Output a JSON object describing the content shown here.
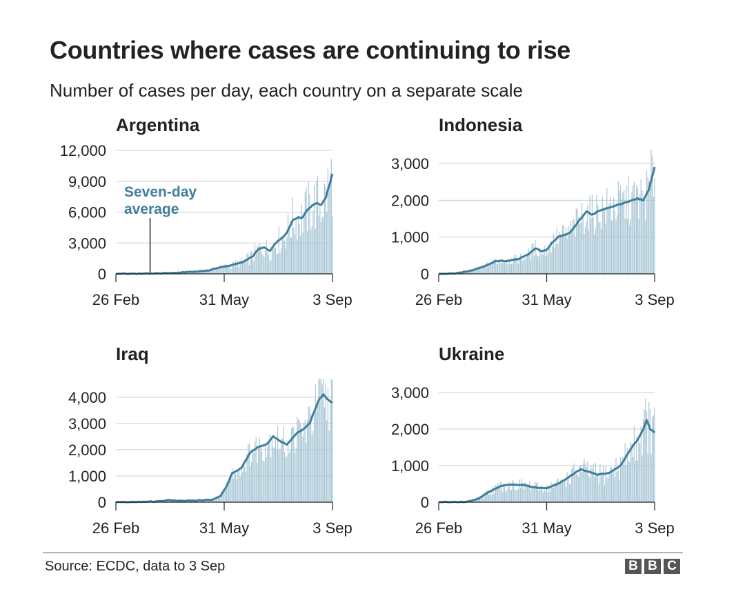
{
  "title": "Countries where cases are continuing to rise",
  "subtitle": "Number of cases per day, each country on a separate scale",
  "source": "Source: ECDC, data to 3 Sep",
  "logo": [
    "B",
    "B",
    "C"
  ],
  "colors": {
    "bar": "#a9c7d6",
    "line": "#3f7e9b",
    "grid": "#cccccc",
    "axis": "#222222"
  },
  "chart_data": [
    {
      "type": "bar",
      "title": "Argentina",
      "x_range": [
        "26 Feb",
        "3 Sep"
      ],
      "x_ticks": [
        {
          "label": "26 Feb",
          "day": 0
        },
        {
          "label": "31 May",
          "day": 95
        },
        {
          "label": "3 Sep",
          "day": 190
        }
      ],
      "ylim": [
        0,
        12000
      ],
      "y_ticks": [
        {
          "label": "0",
          "value": 0
        },
        {
          "label": "3,000",
          "value": 3000
        },
        {
          "label": "6,000",
          "value": 6000
        },
        {
          "label": "9,000",
          "value": 9000
        },
        {
          "label": "12,000",
          "value": 12000
        }
      ],
      "annotation": {
        "lines": [
          "Seven-day",
          "average"
        ],
        "day": 30
      },
      "average_keypoints": [
        [
          0,
          0
        ],
        [
          20,
          20
        ],
        [
          40,
          60
        ],
        [
          60,
          150
        ],
        [
          80,
          300
        ],
        [
          90,
          600
        ],
        [
          100,
          800
        ],
        [
          110,
          1100
        ],
        [
          120,
          1700
        ],
        [
          125,
          2400
        ],
        [
          130,
          2600
        ],
        [
          135,
          2200
        ],
        [
          140,
          3000
        ],
        [
          145,
          3400
        ],
        [
          150,
          4000
        ],
        [
          155,
          5200
        ],
        [
          160,
          5500
        ],
        [
          163,
          5400
        ],
        [
          168,
          6200
        ],
        [
          172,
          6600
        ],
        [
          176,
          6900
        ],
        [
          180,
          6700
        ],
        [
          184,
          7400
        ],
        [
          188,
          8900
        ],
        [
          190,
          9700
        ]
      ],
      "bar_spread": [
        0,
        0.45
      ]
    },
    {
      "type": "bar",
      "title": "Indonesia",
      "x_range": [
        "26 Feb",
        "3 Sep"
      ],
      "x_ticks": [
        {
          "label": "26 Feb",
          "day": 0
        },
        {
          "label": "31 May",
          "day": 95
        },
        {
          "label": "3 Sep",
          "day": 190
        }
      ],
      "ylim": [
        0,
        3300
      ],
      "y_ticks": [
        {
          "label": "0",
          "value": 0
        },
        {
          "label": "1,000",
          "value": 1000
        },
        {
          "label": "2,000",
          "value": 2000
        },
        {
          "label": "3,000",
          "value": 3000
        }
      ],
      "average_keypoints": [
        [
          0,
          0
        ],
        [
          15,
          10
        ],
        [
          30,
          100
        ],
        [
          40,
          200
        ],
        [
          50,
          350
        ],
        [
          60,
          350
        ],
        [
          70,
          400
        ],
        [
          80,
          550
        ],
        [
          85,
          700
        ],
        [
          90,
          620
        ],
        [
          95,
          650
        ],
        [
          100,
          850
        ],
        [
          105,
          1000
        ],
        [
          110,
          1050
        ],
        [
          115,
          1100
        ],
        [
          120,
          1300
        ],
        [
          125,
          1500
        ],
        [
          130,
          1700
        ],
        [
          135,
          1600
        ],
        [
          140,
          1700
        ],
        [
          150,
          1800
        ],
        [
          160,
          1900
        ],
        [
          170,
          2000
        ],
        [
          175,
          2050
        ],
        [
          180,
          2000
        ],
        [
          185,
          2300
        ],
        [
          190,
          2900
        ]
      ],
      "bar_spread": [
        0,
        0.35
      ]
    },
    {
      "type": "bar",
      "title": "Iraq",
      "x_range": [
        "26 Feb",
        "3 Sep"
      ],
      "x_ticks": [
        {
          "label": "26 Feb",
          "day": 0
        },
        {
          "label": "31 May",
          "day": 95
        },
        {
          "label": "3 Sep",
          "day": 190
        }
      ],
      "ylim": [
        0,
        4600
      ],
      "y_ticks": [
        {
          "label": "0",
          "value": 0
        },
        {
          "label": "1,000",
          "value": 1000
        },
        {
          "label": "2,000",
          "value": 2000
        },
        {
          "label": "3,000",
          "value": 3000
        },
        {
          "label": "4,000",
          "value": 4000
        }
      ],
      "average_keypoints": [
        [
          0,
          0
        ],
        [
          20,
          10
        ],
        [
          40,
          30
        ],
        [
          45,
          80
        ],
        [
          55,
          50
        ],
        [
          70,
          60
        ],
        [
          85,
          100
        ],
        [
          92,
          250
        ],
        [
          97,
          600
        ],
        [
          102,
          1100
        ],
        [
          110,
          1300
        ],
        [
          118,
          1900
        ],
        [
          125,
          2100
        ],
        [
          132,
          2200
        ],
        [
          138,
          2500
        ],
        [
          145,
          2300
        ],
        [
          150,
          2200
        ],
        [
          158,
          2600
        ],
        [
          165,
          2800
        ],
        [
          170,
          3000
        ],
        [
          178,
          3900
        ],
        [
          182,
          4100
        ],
        [
          186,
          3900
        ],
        [
          190,
          3800
        ]
      ],
      "bar_spread": [
        0,
        0.3
      ]
    },
    {
      "type": "bar",
      "title": "Ukraine",
      "x_range": [
        "26 Feb",
        "3 Sep"
      ],
      "x_ticks": [
        {
          "label": "26 Feb",
          "day": 0
        },
        {
          "label": "31 May",
          "day": 95
        },
        {
          "label": "3 Sep",
          "day": 190
        }
      ],
      "ylim": [
        0,
        3300
      ],
      "y_ticks": [
        {
          "label": "0",
          "value": 0
        },
        {
          "label": "1,000",
          "value": 1000
        },
        {
          "label": "2,000",
          "value": 2000
        },
        {
          "label": "3,000",
          "value": 3000
        }
      ],
      "average_keypoints": [
        [
          0,
          0
        ],
        [
          25,
          10
        ],
        [
          35,
          100
        ],
        [
          45,
          300
        ],
        [
          55,
          450
        ],
        [
          65,
          480
        ],
        [
          75,
          470
        ],
        [
          85,
          400
        ],
        [
          95,
          380
        ],
        [
          105,
          500
        ],
        [
          115,
          700
        ],
        [
          125,
          900
        ],
        [
          130,
          850
        ],
        [
          140,
          750
        ],
        [
          150,
          800
        ],
        [
          160,
          1000
        ],
        [
          170,
          1500
        ],
        [
          175,
          1700
        ],
        [
          180,
          2000
        ],
        [
          183,
          2250
        ],
        [
          186,
          2000
        ],
        [
          190,
          1900
        ]
      ],
      "bar_spread": [
        0,
        0.4
      ]
    }
  ]
}
